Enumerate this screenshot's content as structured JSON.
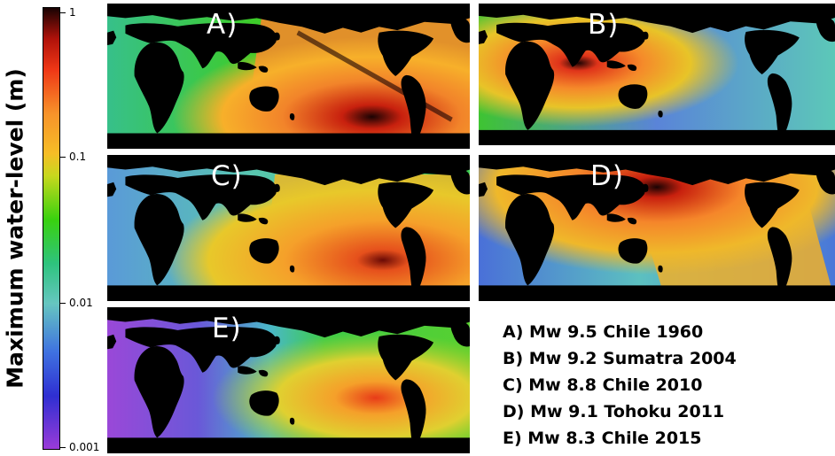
{
  "figure": {
    "colorbar_label": "Maximum water-level (m)",
    "colorbar_ticks": [
      "1",
      "0.1",
      "0.01",
      "0.001"
    ],
    "colorbar_scale": "log",
    "colorbar_range": [
      0.001,
      1
    ],
    "colormap_colors": [
      "#9a3bd8",
      "#2f2fd2",
      "#3f72e0",
      "#66c6c0",
      "#2ec37e",
      "#39d10f",
      "#c8d81e",
      "#f6bd26",
      "#f7932a",
      "#ef3716",
      "#b0120a",
      "#180303"
    ],
    "land_color": "#000000"
  },
  "panels": [
    {
      "label": "A)",
      "event": "Mw 9.5 Chile 1960"
    },
    {
      "label": "B)",
      "event": "Mw 9.2 Sumatra 2004"
    },
    {
      "label": "C)",
      "event": "Mw 8.8 Chile 2010"
    },
    {
      "label": "D)",
      "event": "Mw 9.1 Tohoku 2011"
    },
    {
      "label": "E)",
      "event": "Mw 8.3 Chile 2015"
    }
  ],
  "legend": [
    "A)  Mw 9.5 Chile 1960",
    "B)  Mw 9.2 Sumatra 2004",
    "C)  Mw 8.8 Chile 2010",
    "D)  Mw 9.1 Tohoku 2011",
    "E)  Mw 8.3 Chile 2015"
  ]
}
